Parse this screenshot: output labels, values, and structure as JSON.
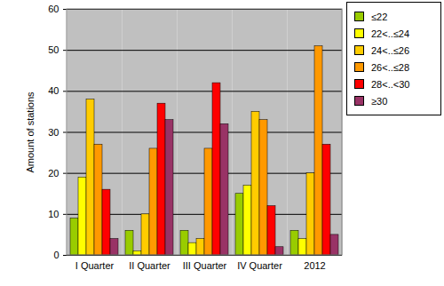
{
  "chart_data": {
    "type": "bar",
    "y_label": "Amount of stations",
    "categories": [
      "I Quarter",
      "II Quarter",
      "III Quarter",
      "IV Quarter",
      "2012"
    ],
    "series": [
      {
        "name": "≤22",
        "color": "#99cc00",
        "values": [
          9,
          6,
          6,
          15,
          6
        ]
      },
      {
        "name": "22<..≤24",
        "color": "#ffff00",
        "values": [
          19,
          1,
          3,
          17,
          4
        ]
      },
      {
        "name": "24<..≤26",
        "color": "#ffcc00",
        "values": [
          38,
          10,
          4,
          35,
          20
        ]
      },
      {
        "name": "26<..≤28",
        "color": "#ff9900",
        "values": [
          27,
          26,
          26,
          33,
          51
        ]
      },
      {
        "name": "28<..<30",
        "color": "#ff0000",
        "values": [
          16,
          37,
          42,
          12,
          27
        ]
      },
      {
        "name": "≥30",
        "color": "#993366",
        "values": [
          4,
          33,
          32,
          2,
          5
        ]
      }
    ],
    "ylim": [
      0,
      60
    ],
    "yticks": [
      0,
      10,
      20,
      30,
      40,
      50,
      60
    ],
    "grid": true,
    "legend": "top-right"
  }
}
